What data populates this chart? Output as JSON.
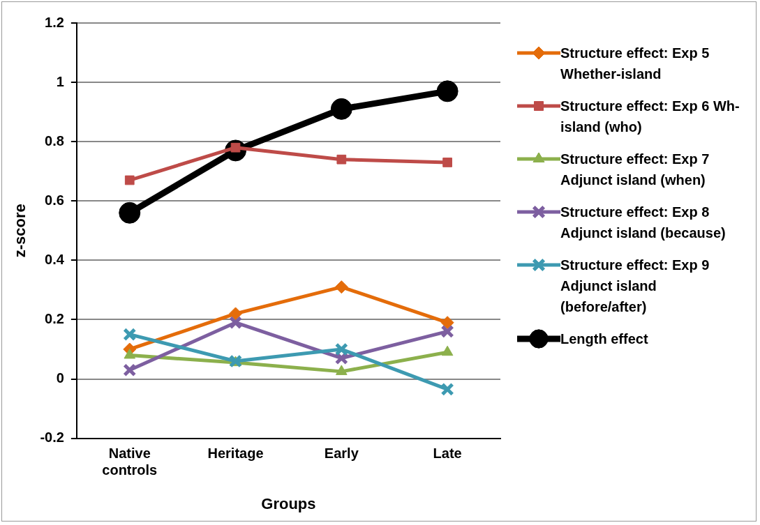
{
  "chart_data": {
    "type": "line",
    "xlabel": "Groups",
    "ylabel": "z-score",
    "categories": [
      "Native controls",
      "Heritage",
      "Early",
      "Late"
    ],
    "ylim": [
      -0.2,
      1.2
    ],
    "yticks": [
      -0.2,
      0,
      0.2,
      0.4,
      0.6,
      0.8,
      1,
      1.2
    ],
    "grid": "y",
    "legend": "right",
    "series": [
      {
        "name": "Structure effect: Exp 5 Whether-island",
        "color": "#e46c0a",
        "marker": "diamond",
        "values": [
          0.1,
          0.22,
          0.31,
          0.19
        ]
      },
      {
        "name": "Structure effect: Exp 6 Wh-island (who)",
        "color": "#be4b48",
        "marker": "square",
        "values": [
          0.67,
          0.78,
          0.74,
          0.73
        ]
      },
      {
        "name": "Structure effect: Exp 7 Adjunct island (when)",
        "color": "#8cb04c",
        "marker": "triangle",
        "values": [
          0.08,
          0.055,
          0.025,
          0.09
        ]
      },
      {
        "name": "Structure effect: Exp 8 Adjunct island (because)",
        "color": "#7d5fa0",
        "marker": "cross",
        "values": [
          0.03,
          0.19,
          0.07,
          0.16
        ]
      },
      {
        "name": "Structure effect: Exp 9 Adjunct island (before/after)",
        "color": "#3d9ab1",
        "marker": "cross",
        "values": [
          0.15,
          0.06,
          0.1,
          -0.035
        ]
      },
      {
        "name": "Length effect",
        "color": "#000000",
        "marker": "circle",
        "values": [
          0.56,
          0.77,
          0.91,
          0.97
        ]
      }
    ]
  }
}
